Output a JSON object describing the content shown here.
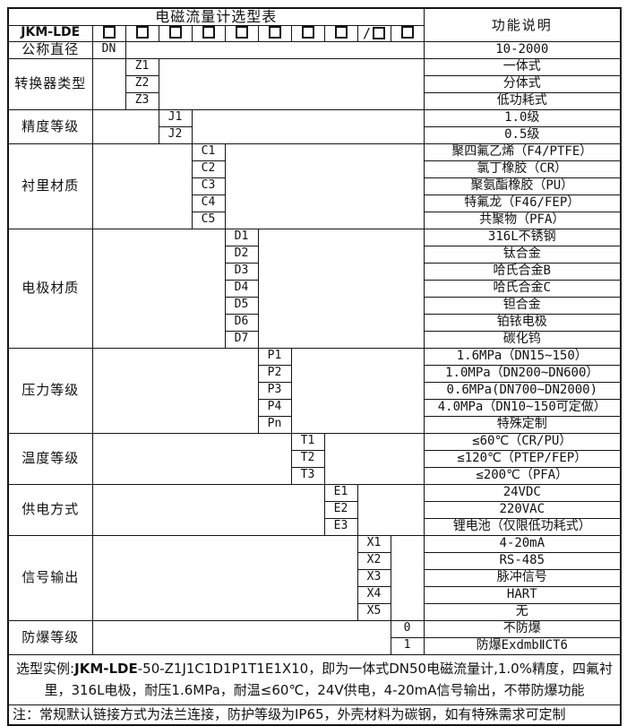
{
  "title": "电磁流量计选型表",
  "function_header": "功能说明",
  "model": {
    "prefix": "JKM-LDE",
    "checkbox_count": 10,
    "slash_index": 8
  },
  "sections": [
    {
      "label": "公称直径",
      "code_col": 1,
      "rows": [
        {
          "code": "DN",
          "desc": "10-2000"
        }
      ]
    },
    {
      "label": "转换器类型",
      "code_col": 2,
      "rows": [
        {
          "code": "Z1",
          "desc": "一体式"
        },
        {
          "code": "Z2",
          "desc": "分体式"
        },
        {
          "code": "Z3",
          "desc": "低功耗式"
        }
      ]
    },
    {
      "label": "精度等级",
      "code_col": 3,
      "rows": [
        {
          "code": "J1",
          "desc": "1.0级"
        },
        {
          "code": "J2",
          "desc": "0.5级"
        }
      ]
    },
    {
      "label": "衬里材质",
      "code_col": 4,
      "rows": [
        {
          "code": "C1",
          "desc": "聚四氟乙烯（F4/PTFE）"
        },
        {
          "code": "C2",
          "desc": "氯丁橡胶（CR）"
        },
        {
          "code": "C3",
          "desc": "聚氨酯橡胶（PU）"
        },
        {
          "code": "C4",
          "desc": "特氟龙（F46/FEP）"
        },
        {
          "code": "C5",
          "desc": "共聚物（PFA）"
        }
      ]
    },
    {
      "label": "电极材质",
      "code_col": 5,
      "rows": [
        {
          "code": "D1",
          "desc": "316L不锈钢"
        },
        {
          "code": "D2",
          "desc": "钛合金"
        },
        {
          "code": "D3",
          "desc": "哈氏合金B"
        },
        {
          "code": "D4",
          "desc": "哈氏合金C"
        },
        {
          "code": "D5",
          "desc": "钽合金"
        },
        {
          "code": "D6",
          "desc": "铂铱电极"
        },
        {
          "code": "D7",
          "desc": "碳化钨"
        }
      ]
    },
    {
      "label": "压力等级",
      "code_col": 6,
      "rows": [
        {
          "code": "P1",
          "desc": "1.6MPa（DN15~150）"
        },
        {
          "code": "P2",
          "desc": "1.0MPa（DN200~DN600）"
        },
        {
          "code": "P3",
          "desc": "0.6MPa(DN700~DN2000)"
        },
        {
          "code": "P4",
          "desc": "4.0MPa（DN10~150可定做）"
        },
        {
          "code": "Pn",
          "desc": "特殊定制"
        }
      ]
    },
    {
      "label": "温度等级",
      "code_col": 7,
      "rows": [
        {
          "code": "T1",
          "desc": "≤60℃（CR/PU）"
        },
        {
          "code": "T2",
          "desc": "≤120℃（PTEP/FEP）"
        },
        {
          "code": "T3",
          "desc": "≤200℃（PFA）"
        }
      ]
    },
    {
      "label": "供电方式",
      "code_col": 8,
      "rows": [
        {
          "code": "E1",
          "desc": "24VDC"
        },
        {
          "code": "E2",
          "desc": "220VAC"
        },
        {
          "code": "E3",
          "desc": "锂电池（仅限低功耗式）"
        }
      ]
    },
    {
      "label": "信号输出",
      "code_col": 9,
      "rows": [
        {
          "code": "X1",
          "desc": "4-20mA"
        },
        {
          "code": "X2",
          "desc": "RS-485"
        },
        {
          "code": "X3",
          "desc": "脉冲信号"
        },
        {
          "code": "X4",
          "desc": "HART"
        },
        {
          "code": "X5",
          "desc": "无"
        }
      ]
    },
    {
      "label": "防爆等级",
      "code_col": 10,
      "rows": [
        {
          "code": "0",
          "desc": "不防爆"
        },
        {
          "code": "1",
          "desc": "防爆ExdmbⅡCT6"
        }
      ]
    }
  ],
  "footer": {
    "example_prefix": "选型实例:",
    "example_model": "JKM-LDE",
    "example_rest": "-50-Z1J1C1D1P1T1E1X10，即为一体式DN50电磁流量计,1.0%精度，四氟衬里，316L电极，耐压1.6MPa，耐温≤60℃，24V供电，4-20mA信号输出，不带防爆功能",
    "note": "注：常规默认链接方式为法兰连接，防护等级为IP65，外壳材料为碳钢，如有特殊需求可定制"
  },
  "colors": {
    "border": "#141414",
    "background": "#ffffff",
    "text": "#111111"
  }
}
